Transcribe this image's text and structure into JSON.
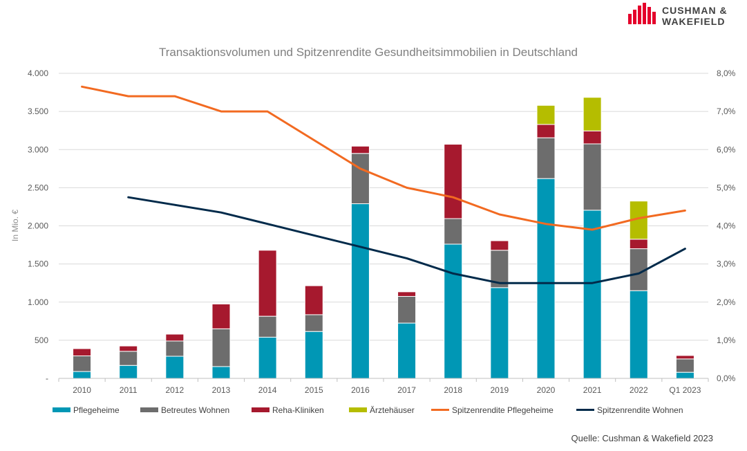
{
  "brand": {
    "line1": "CUSHMAN &",
    "line2": "WAKEFIELD",
    "color": "#e4002b"
  },
  "source": "Quelle: Cushman & Wakefield 2023",
  "chart_data": {
    "type": "bar",
    "stacked": true,
    "title": "Transaktionsvolumen und Spitzenrendite Gesundheitsimmobilien in Deutschland",
    "ylabel": "In Mio. €",
    "y2label": "",
    "xlabel": "",
    "categories": [
      "2010",
      "2011",
      "2012",
      "2013",
      "2014",
      "2015",
      "2016",
      "2017",
      "2018",
      "2019",
      "2020",
      "2021",
      "2022",
      "Q1 2023"
    ],
    "ylim": [
      0,
      4000
    ],
    "y_ticks": [
      "-",
      "500",
      "1.000",
      "1.500",
      "2.000",
      "2.500",
      "3.000",
      "3.500",
      "4.000"
    ],
    "y2lim": [
      0,
      8
    ],
    "y2_ticks": [
      "0,0%",
      "1,0%",
      "2,0%",
      "3,0%",
      "4,0%",
      "5,0%",
      "6,0%",
      "7,0%",
      "8,0%"
    ],
    "grid": true,
    "legend_position": "bottom",
    "series": [
      {
        "name": "Pflegeheime",
        "kind": "bar",
        "color": "#0097b5",
        "values": [
          90,
          170,
          290,
          155,
          540,
          615,
          2290,
          725,
          1760,
          1190,
          2620,
          2205,
          1150,
          80
        ]
      },
      {
        "name": "Betreutes Wohnen",
        "kind": "bar",
        "color": "#6d6d6d",
        "values": [
          205,
          185,
          200,
          495,
          275,
          220,
          660,
          350,
          335,
          490,
          535,
          870,
          550,
          175
        ]
      },
      {
        "name": "Reha-Kliniken",
        "kind": "bar",
        "color": "#a6192e",
        "values": [
          95,
          70,
          90,
          325,
          865,
          380,
          95,
          60,
          975,
          125,
          175,
          170,
          125,
          45
        ]
      },
      {
        "name": "Ärztehäuser",
        "kind": "bar",
        "color": "#b5bd00",
        "values": [
          0,
          0,
          0,
          0,
          0,
          0,
          0,
          0,
          0,
          0,
          250,
          440,
          500,
          0
        ]
      },
      {
        "name": "Spitzenrendite Pflegeheime",
        "kind": "line",
        "axis": "right",
        "color": "#f26a21",
        "values": [
          7.65,
          7.4,
          7.4,
          7.0,
          7.0,
          6.25,
          5.5,
          5.0,
          4.75,
          4.3,
          4.05,
          3.9,
          4.2,
          4.4
        ]
      },
      {
        "name": "Spitzenrendite Wohnen",
        "kind": "line",
        "axis": "right",
        "color": "#012a4a",
        "values": [
          null,
          4.75,
          4.55,
          4.35,
          4.05,
          3.75,
          3.45,
          3.15,
          2.75,
          2.5,
          2.5,
          2.5,
          2.75,
          3.4
        ]
      }
    ]
  }
}
